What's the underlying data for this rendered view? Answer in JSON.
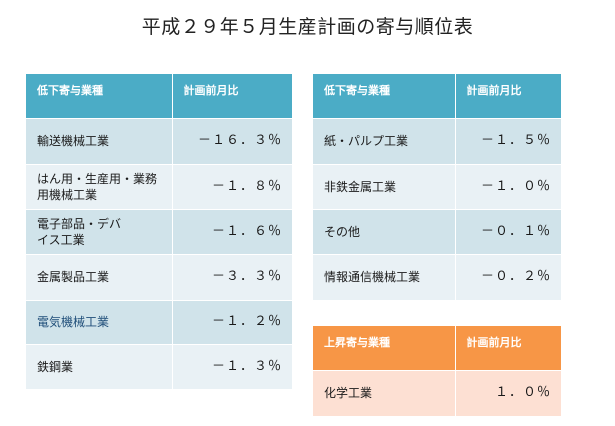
{
  "title": "平成２９年５月生産計画の寄与順位表",
  "left_table": {
    "header": {
      "category": "低下寄与業種",
      "value": "計画前月比"
    },
    "rows": [
      {
        "category": "輸送機械工業",
        "value": "－１６．３％"
      },
      {
        "category": "はん用・生産用・業務用機械工業",
        "value": "－１．８％"
      },
      {
        "category": "電子部品・デバイス工業",
        "value": "－１．６％"
      },
      {
        "category": "金属製品工業",
        "value": "－３．３％"
      },
      {
        "category": "電気機械工業",
        "value": "－１．２％"
      },
      {
        "category": "鉄鋼業",
        "value": "－１．３％"
      }
    ]
  },
  "right_table": {
    "header": {
      "category": "低下寄与業種",
      "value": "計画前月比"
    },
    "rows": [
      {
        "category": "紙・パルプ工業",
        "value": "－１．５％"
      },
      {
        "category": "非鉄金属工業",
        "value": "－１．０％"
      },
      {
        "category": "その他",
        "value": "－０．１％"
      },
      {
        "category": "情報通信機械工業",
        "value": "－０．２％"
      }
    ]
  },
  "rise_table": {
    "header": {
      "category": "上昇寄与業種",
      "value": "計画前月比"
    },
    "rows": [
      {
        "category": "化学工業",
        "value": "１．０％"
      }
    ]
  },
  "colors": {
    "header_blue": "#4bacc6",
    "header_orange": "#f79646",
    "row_dark": "#d0e3ea",
    "row_light": "#e9f1f5",
    "row_peach": "#fde0d3"
  }
}
